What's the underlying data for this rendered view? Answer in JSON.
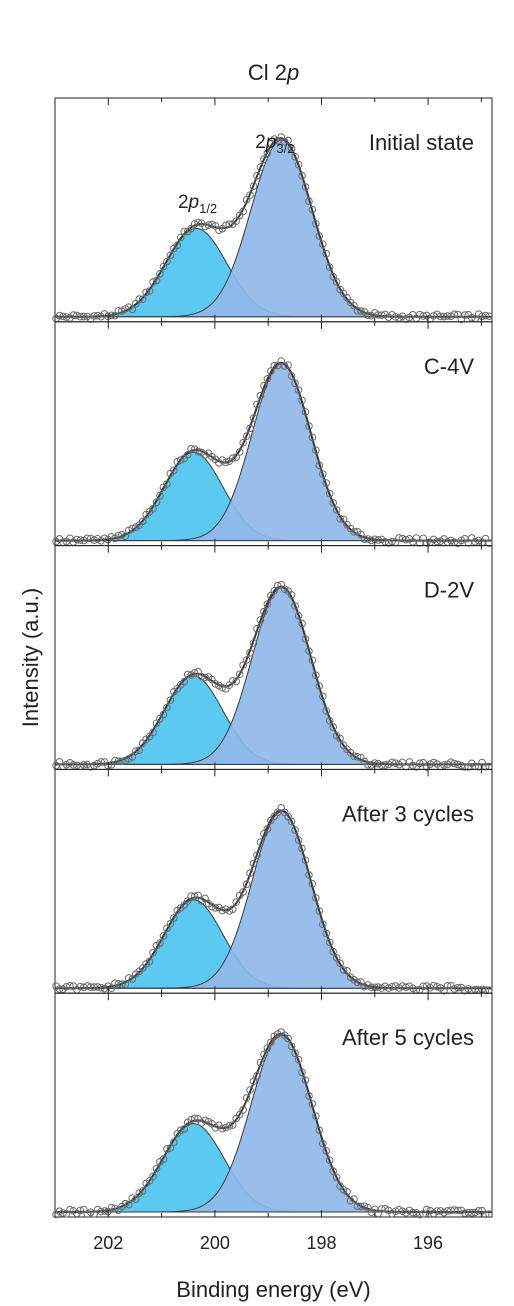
{
  "chart_data": {
    "type": "line",
    "title": "Cl 2p",
    "title_main": "Cl 2",
    "title_italic": "p",
    "xlabel": "Binding energy (eV)",
    "ylabel": "Intensity (a.u.)",
    "xlim": [
      203.0,
      194.8
    ],
    "x_reversed": true,
    "x_ticks": [
      202,
      200,
      198,
      196
    ],
    "x_tick_labels": [
      "202",
      "200",
      "198",
      "196"
    ],
    "peak_labels": {
      "p32": {
        "prefix": "2",
        "italic": "p",
        "sub": "3/2",
        "x": 198.8
      },
      "p12": {
        "prefix": "2",
        "italic": "p",
        "sub": "1/2",
        "x": 200.4
      }
    },
    "colors": {
      "p32_fill": "#8fb8ea",
      "p12_fill": "#5bc9f2",
      "envelope": "#3a3a3a",
      "markers": "#6a6a6a"
    },
    "panels": [
      {
        "label": "Initial state",
        "p32": {
          "center": 198.75,
          "height": 1.0,
          "fwhm": 1.35
        },
        "p12": {
          "center": 200.35,
          "height": 0.5,
          "fwhm": 1.35
        }
      },
      {
        "label": "C-4V",
        "p32": {
          "center": 198.75,
          "height": 1.0,
          "fwhm": 1.3
        },
        "p12": {
          "center": 200.4,
          "height": 0.5,
          "fwhm": 1.3
        }
      },
      {
        "label": "D-2V",
        "p32": {
          "center": 198.75,
          "height": 1.0,
          "fwhm": 1.3
        },
        "p12": {
          "center": 200.4,
          "height": 0.5,
          "fwhm": 1.3
        }
      },
      {
        "label": "After 3 cycles",
        "p32": {
          "center": 198.75,
          "height": 1.0,
          "fwhm": 1.3
        },
        "p12": {
          "center": 200.4,
          "height": 0.5,
          "fwhm": 1.3
        }
      },
      {
        "label": "After 5 cycles",
        "p32": {
          "center": 198.75,
          "height": 1.0,
          "fwhm": 1.35
        },
        "p12": {
          "center": 200.4,
          "height": 0.5,
          "fwhm": 1.35
        }
      }
    ]
  }
}
